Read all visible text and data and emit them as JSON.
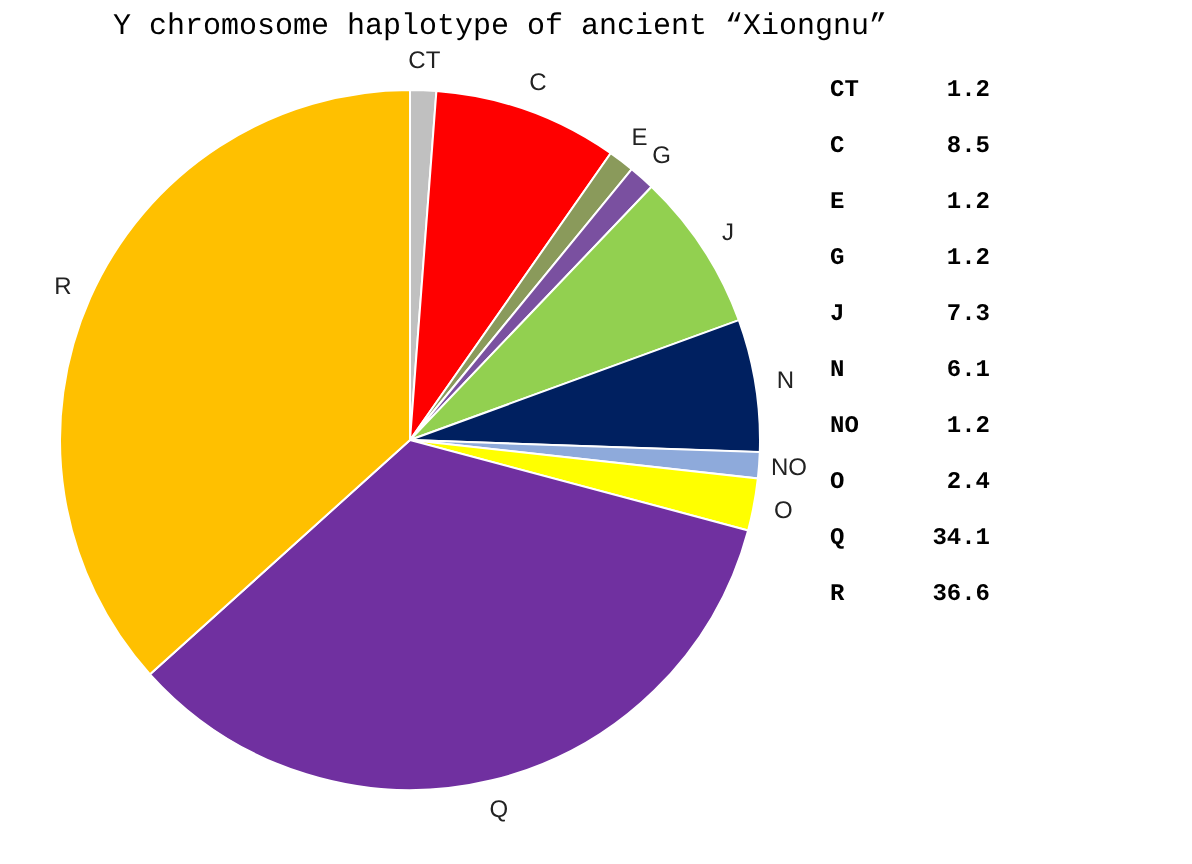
{
  "chart_data": {
    "type": "pie",
    "title": "Y chromosome haplotype of ancient “Xiongnu”",
    "categories": [
      "CT",
      "C",
      "E",
      "G",
      "J",
      "N",
      "NO",
      "O",
      "Q",
      "R"
    ],
    "values": [
      1.2,
      8.5,
      1.2,
      1.2,
      7.3,
      6.1,
      1.2,
      2.4,
      34.1,
      36.6
    ],
    "colors": [
      "#c0c0c0",
      "#ff0000",
      "#8a9a5b",
      "#7a50a0",
      "#92d050",
      "#002060",
      "#8eaadb",
      "#ffff00",
      "#7030a0",
      "#ffc000"
    ],
    "annotations": [
      "CT 1.2",
      "C 8.5",
      "E 1.2",
      "G 1.2",
      "J 7.3",
      "N 6.1",
      "NO 1.2",
      "O 2.4",
      "Q 34.1",
      "R 36.6"
    ]
  }
}
